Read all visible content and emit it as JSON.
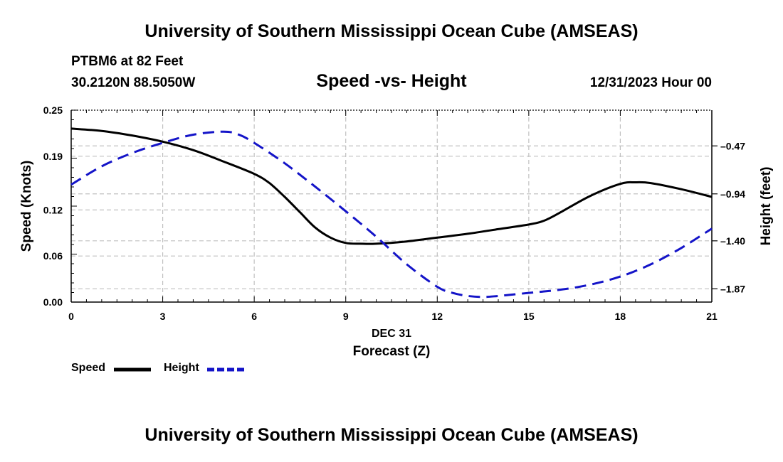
{
  "header": {
    "title_top": "University of Southern Mississippi Ocean Cube (AMSEAS)",
    "station": "PTBM6 at 82 Feet",
    "coords": "30.2120N  88.5050W",
    "subtitle": "Speed -vs- Height",
    "datetime": "12/31/2023 Hour 00",
    "title_bottom": "University of Southern Mississippi Ocean Cube (AMSEAS)"
  },
  "colors": {
    "speed": "#000000",
    "height": "#1414c8",
    "grid": "#c0c0c0"
  },
  "chart_data": {
    "type": "line",
    "title": "Speed -vs- Height",
    "xlabel": "Forecast (Z)",
    "x_sublabel": "DEC 31",
    "ylabel": "Speed (Knots)",
    "y2label": "Height (feet)",
    "xlim": [
      0,
      21
    ],
    "ylim": [
      0,
      0.25
    ],
    "y2lim": [
      -2.0,
      -0.12
    ],
    "xticks": [
      0,
      3,
      6,
      9,
      12,
      15,
      18,
      21
    ],
    "yticks": [
      0.0,
      0.06,
      0.12,
      0.19,
      0.25
    ],
    "ytick_labels": [
      "0.00",
      "0.06",
      "0.12",
      "0.19",
      "0.25"
    ],
    "y2ticks": [
      -0.47,
      -0.94,
      -1.4,
      -1.87
    ],
    "y2tick_labels": [
      "-0.47",
      "-0.94",
      "-1.40",
      "-1.87"
    ],
    "grid": true,
    "series": [
      {
        "name": "Speed",
        "axis": "left",
        "style": "solid",
        "x": [
          0,
          1,
          2,
          3,
          4,
          5,
          6,
          6.5,
          7,
          7.5,
          8,
          8.5,
          9,
          9.5,
          10,
          11,
          12,
          13,
          14,
          15,
          15.5,
          16,
          17,
          18,
          18.5,
          19,
          20,
          21
        ],
        "values": [
          0.226,
          0.223,
          0.217,
          0.209,
          0.198,
          0.183,
          0.167,
          0.155,
          0.137,
          0.117,
          0.097,
          0.084,
          0.077,
          0.076,
          0.076,
          0.079,
          0.084,
          0.089,
          0.095,
          0.101,
          0.106,
          0.116,
          0.138,
          0.154,
          0.156,
          0.155,
          0.147,
          0.137
        ]
      },
      {
        "name": "Height",
        "axis": "right",
        "style": "dashed",
        "x": [
          0,
          1,
          2,
          3,
          4,
          5,
          5.5,
          6,
          7,
          8,
          9,
          10,
          11,
          12,
          12.5,
          13,
          13.5,
          14,
          15,
          16,
          17,
          18,
          19,
          20,
          21
        ],
        "values": [
          -0.85,
          -0.67,
          -0.54,
          -0.44,
          -0.36,
          -0.33,
          -0.36,
          -0.44,
          -0.64,
          -0.87,
          -1.11,
          -1.36,
          -1.63,
          -1.85,
          -1.91,
          -1.94,
          -1.95,
          -1.94,
          -1.91,
          -1.88,
          -1.83,
          -1.75,
          -1.63,
          -1.47,
          -1.28
        ]
      }
    ],
    "legend": [
      {
        "label": "Speed",
        "style": "solid"
      },
      {
        "label": "Height",
        "style": "dashed"
      }
    ],
    "legend_position": "bottom-left"
  }
}
